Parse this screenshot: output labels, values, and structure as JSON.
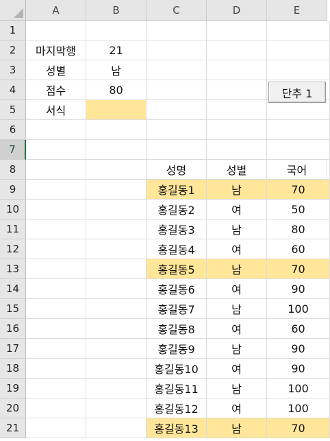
{
  "columns": [
    "A",
    "B",
    "C",
    "D",
    "E"
  ],
  "rows": [
    "1",
    "2",
    "3",
    "4",
    "5",
    "6",
    "7",
    "8",
    "9",
    "10",
    "11",
    "12",
    "13",
    "14",
    "15",
    "16",
    "17",
    "18",
    "19",
    "20",
    "21"
  ],
  "selected_row": "7",
  "params": [
    {
      "label": "마지막행",
      "value": "21"
    },
    {
      "label": "성별",
      "value": "남"
    },
    {
      "label": "점수",
      "value": "80"
    },
    {
      "label": "서식",
      "value": ""
    }
  ],
  "button": {
    "label": "단추 1"
  },
  "table": {
    "headers": [
      "성명",
      "성별",
      "국어"
    ],
    "rows": [
      {
        "name": "홍길동1",
        "gender": "남",
        "score": "70",
        "highlight": true
      },
      {
        "name": "홍길동2",
        "gender": "여",
        "score": "50",
        "highlight": false
      },
      {
        "name": "홍길동3",
        "gender": "남",
        "score": "80",
        "highlight": false
      },
      {
        "name": "홍길동4",
        "gender": "여",
        "score": "60",
        "highlight": false
      },
      {
        "name": "홍길동5",
        "gender": "남",
        "score": "70",
        "highlight": true
      },
      {
        "name": "홍길동6",
        "gender": "여",
        "score": "90",
        "highlight": false
      },
      {
        "name": "홍길동7",
        "gender": "남",
        "score": "100",
        "highlight": false
      },
      {
        "name": "홍길동8",
        "gender": "여",
        "score": "60",
        "highlight": false
      },
      {
        "name": "홍길동9",
        "gender": "남",
        "score": "90",
        "highlight": false
      },
      {
        "name": "홍길동10",
        "gender": "여",
        "score": "90",
        "highlight": false
      },
      {
        "name": "홍길동11",
        "gender": "남",
        "score": "100",
        "highlight": false
      },
      {
        "name": "홍길동12",
        "gender": "여",
        "score": "100",
        "highlight": false
      },
      {
        "name": "홍길동13",
        "gender": "남",
        "score": "70",
        "highlight": true
      }
    ]
  },
  "colors": {
    "highlight": "#ffe699",
    "header_bg": "#e6e6e6",
    "selection_accent": "#217346"
  }
}
